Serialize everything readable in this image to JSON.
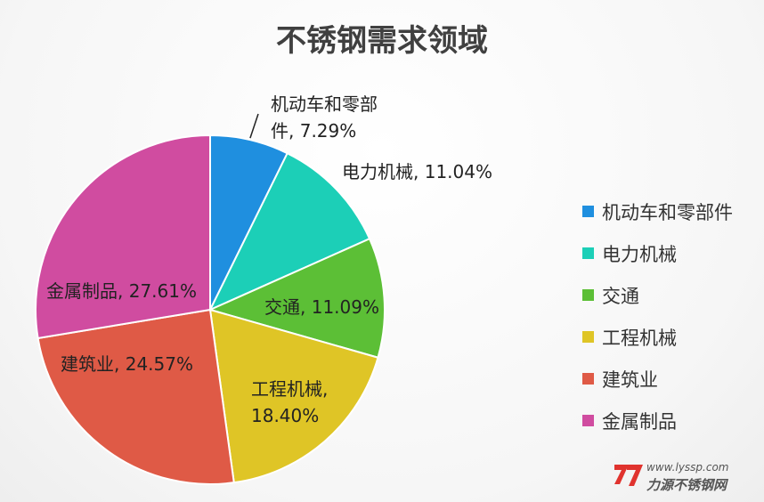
{
  "chart_data": {
    "type": "pie",
    "title": "不锈钢需求领域",
    "categories": [
      "机动车和零部件",
      "电力机械",
      "交通",
      "工程机械",
      "建筑业",
      "金属制品"
    ],
    "values": [
      7.29,
      11.04,
      11.09,
      18.4,
      24.57,
      27.61
    ],
    "value_labels": [
      "7.29%",
      "11.04%",
      "11.09%",
      "18.40%",
      "24.57%",
      "27.61%"
    ],
    "slice_labels": [
      [
        "机动车和零部",
        "件, 7.29%"
      ],
      [
        "电力机械, 11.04%"
      ],
      [
        "交通, 11.09%"
      ],
      [
        "工程机械,",
        "18.40%"
      ],
      [
        "建筑业, 24.57%"
      ],
      [
        "金属制品, 27.61%"
      ]
    ],
    "colors": [
      "#1f8fdf",
      "#1ccfb7",
      "#5cbf36",
      "#dfc526",
      "#df5a46",
      "#d04ca0"
    ],
    "legend_position": "right"
  },
  "watermark": {
    "url": "www.lyssp.com",
    "name": "力源不锈钢网"
  }
}
